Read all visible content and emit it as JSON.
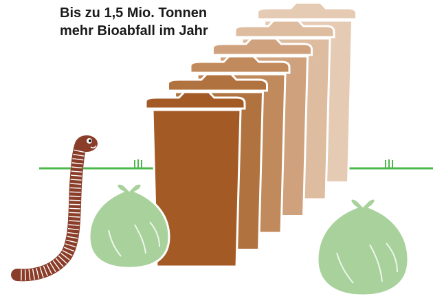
{
  "headline": {
    "line1": "Bis zu 1,5 Mio. Tonnen",
    "line2": "mehr Bioabfall im Jahr"
  },
  "illustration": {
    "bins": 6,
    "bin_colors": [
      "#e6cbb4",
      "#ddbc9f",
      "#cfa17c",
      "#c08a5c",
      "#b0723e",
      "#a35a25"
    ],
    "bag_color": "#a8d19c",
    "bag_outline": "#ffffff",
    "ground_color": "#4bb84b",
    "worm_color": "#8a3e2a",
    "icons": [
      "worm-icon",
      "bag-icon",
      "grass-tuft-icon",
      "bin-icon"
    ]
  }
}
